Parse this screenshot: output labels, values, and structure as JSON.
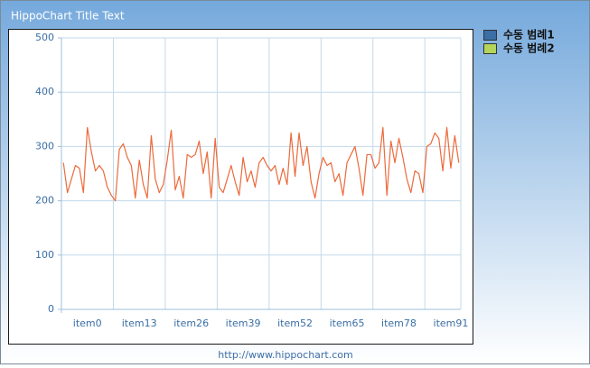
{
  "chart_data": {
    "type": "line",
    "title": "HippoChart Title Text",
    "footer": "http://www.hippochart.com",
    "categories": [
      "item0",
      null,
      null,
      null,
      null,
      null,
      null,
      null,
      null,
      null,
      null,
      null,
      null,
      "item13",
      null,
      null,
      null,
      null,
      null,
      null,
      null,
      null,
      null,
      null,
      null,
      null,
      "item26",
      null,
      null,
      null,
      null,
      null,
      null,
      null,
      null,
      null,
      null,
      null,
      null,
      "item39",
      null,
      null,
      null,
      null,
      null,
      null,
      null,
      null,
      null,
      null,
      null,
      null,
      "item52",
      null,
      null,
      null,
      null,
      null,
      null,
      null,
      null,
      null,
      null,
      null,
      null,
      "item65",
      null,
      null,
      null,
      null,
      null,
      null,
      null,
      null,
      null,
      null,
      null,
      null,
      "item78",
      null,
      null,
      null,
      null,
      null,
      null,
      null,
      null,
      null,
      null,
      null,
      null,
      "item91",
      null,
      null,
      null,
      null,
      null,
      null,
      null,
      null
    ],
    "series": [
      {
        "name": "수동 범례1",
        "color": "#3a6ea5",
        "line_color": "#ec6a3c",
        "values": [
          270,
          215,
          240,
          265,
          260,
          215,
          335,
          290,
          255,
          265,
          255,
          225,
          210,
          200,
          295,
          305,
          280,
          265,
          205,
          275,
          230,
          205,
          320,
          240,
          215,
          230,
          275,
          330,
          220,
          245,
          205,
          285,
          280,
          285,
          310,
          250,
          290,
          205,
          315,
          225,
          215,
          240,
          265,
          235,
          210,
          280,
          235,
          255,
          225,
          270,
          280,
          265,
          255,
          265,
          230,
          260,
          230,
          325,
          245,
          325,
          265,
          300,
          235,
          205,
          250,
          280,
          265,
          270,
          235,
          250,
          210,
          270,
          285,
          300,
          260,
          210,
          285,
          285,
          260,
          270,
          335,
          210,
          310,
          270,
          315,
          280,
          240,
          215,
          255,
          250,
          215,
          300,
          305,
          325,
          315,
          255,
          335,
          260,
          320,
          270
        ]
      },
      {
        "name": "수동 범례2",
        "color": "#b5d45a",
        "line_color": "#8fb52e",
        "values": [
          null,
          null,
          null,
          null,
          null,
          null,
          null,
          null,
          null,
          null,
          null,
          null,
          null,
          null,
          null,
          null,
          null,
          null,
          null,
          null,
          null,
          null,
          null,
          null,
          null,
          null,
          null,
          null,
          null,
          null,
          null,
          null,
          null,
          null,
          null,
          null,
          null,
          null,
          null,
          null,
          null,
          null,
          null,
          null,
          null,
          null,
          null,
          null,
          null,
          null,
          null,
          null,
          null,
          null,
          null,
          null,
          null,
          null,
          null,
          null,
          null,
          null,
          null,
          null,
          null,
          null,
          null,
          null,
          null,
          null,
          null,
          null,
          null,
          null,
          null,
          null,
          null,
          null,
          null,
          null,
          null,
          null,
          null,
          null,
          null,
          null,
          null,
          null,
          null,
          null,
          null,
          null,
          null,
          null,
          null,
          null,
          null,
          null,
          null,
          null
        ]
      }
    ],
    "ylim": [
      0,
      500
    ],
    "yticks": [
      0,
      100,
      200,
      300,
      400,
      500
    ],
    "grid": true
  }
}
